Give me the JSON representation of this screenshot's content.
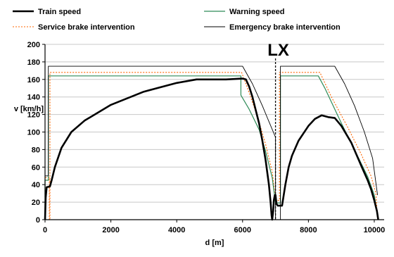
{
  "chart_data": {
    "type": "line",
    "title": "",
    "xlabel": "d [m]",
    "ylabel": "v [km/h]",
    "xlim": [
      0,
      10300
    ],
    "ylim": [
      0,
      200
    ],
    "xticks": [
      0,
      2000,
      4000,
      6000,
      8000,
      10000
    ],
    "yticks": [
      0,
      20,
      40,
      60,
      80,
      100,
      120,
      140,
      160,
      180,
      200
    ],
    "grid": "horizontal",
    "legend_position": "top",
    "annotations": [
      {
        "text": "LX",
        "x": 7000
      }
    ],
    "series": [
      {
        "name": "Train speed",
        "color": "#000000",
        "style": "solid-thick",
        "points": [
          [
            0,
            0
          ],
          [
            20,
            25
          ],
          [
            50,
            37
          ],
          [
            150,
            38
          ],
          [
            200,
            45
          ],
          [
            300,
            60
          ],
          [
            500,
            82
          ],
          [
            800,
            100
          ],
          [
            1200,
            113
          ],
          [
            2000,
            131
          ],
          [
            3000,
            146
          ],
          [
            4000,
            156
          ],
          [
            4600,
            160
          ],
          [
            5500,
            160
          ],
          [
            6000,
            161
          ],
          [
            6100,
            160
          ],
          [
            6200,
            152
          ],
          [
            6300,
            140
          ],
          [
            6400,
            125
          ],
          [
            6500,
            110
          ],
          [
            6600,
            90
          ],
          [
            6700,
            68
          ],
          [
            6800,
            40
          ],
          [
            6850,
            20
          ],
          [
            6880,
            5
          ],
          [
            6900,
            0
          ],
          [
            6930,
            10
          ],
          [
            6950,
            22
          ],
          [
            6980,
            28
          ],
          [
            7000,
            28
          ],
          [
            7030,
            18
          ],
          [
            7070,
            16
          ],
          [
            7200,
            16
          ],
          [
            7300,
            40
          ],
          [
            7400,
            60
          ],
          [
            7500,
            73
          ],
          [
            7700,
            90
          ],
          [
            8000,
            107
          ],
          [
            8200,
            115
          ],
          [
            8400,
            119
          ],
          [
            8600,
            117
          ],
          [
            8800,
            116
          ],
          [
            9000,
            107
          ],
          [
            9300,
            88
          ],
          [
            9600,
            62
          ],
          [
            9800,
            45
          ],
          [
            9900,
            35
          ],
          [
            10000,
            22
          ],
          [
            10080,
            10
          ],
          [
            10120,
            0
          ]
        ]
      },
      {
        "name": "Warning speed",
        "color": "#2e8b57",
        "style": "solid",
        "points": [
          [
            0,
            0
          ],
          [
            0,
            45
          ],
          [
            100,
            45
          ],
          [
            100,
            164
          ],
          [
            5950,
            164
          ],
          [
            5950,
            142
          ],
          [
            6200,
            126
          ],
          [
            6500,
            103
          ],
          [
            6700,
            78
          ],
          [
            6900,
            48
          ],
          [
            7000,
            19
          ],
          [
            7150,
            19
          ],
          [
            7150,
            164
          ],
          [
            8300,
            164
          ],
          [
            8500,
            150
          ],
          [
            9000,
            110
          ],
          [
            9500,
            72
          ],
          [
            9800,
            49
          ],
          [
            10000,
            28
          ],
          [
            10100,
            5
          ]
        ]
      },
      {
        "name": "Service brake intervention",
        "color": "#ff6600",
        "style": "dotted",
        "points": [
          [
            0,
            0
          ],
          [
            0,
            48
          ],
          [
            130,
            48
          ],
          [
            130,
            0
          ],
          [
            150,
            0
          ],
          [
            150,
            168
          ],
          [
            5970,
            168
          ],
          [
            6150,
            150
          ],
          [
            6450,
            118
          ],
          [
            6700,
            86
          ],
          [
            6900,
            55
          ],
          [
            7000,
            22
          ],
          [
            7120,
            22
          ],
          [
            7120,
            168
          ],
          [
            8350,
            168
          ],
          [
            8700,
            140
          ],
          [
            9200,
            105
          ],
          [
            9600,
            75
          ],
          [
            9900,
            50
          ],
          [
            10050,
            30
          ],
          [
            10100,
            0
          ]
        ]
      },
      {
        "name": "Emergency brake intervention",
        "color": "#000000",
        "style": "solid-thin",
        "points": [
          [
            0,
            0
          ],
          [
            0,
            50
          ],
          [
            100,
            50
          ],
          [
            100,
            175
          ],
          [
            6000,
            175
          ],
          [
            6300,
            155
          ],
          [
            6600,
            130
          ],
          [
            6800,
            112
          ],
          [
            7000,
            94
          ],
          [
            7000,
            0
          ],
          [
            7150,
            0
          ],
          [
            7150,
            175
          ],
          [
            8800,
            175
          ],
          [
            9100,
            155
          ],
          [
            9400,
            130
          ],
          [
            9700,
            100
          ],
          [
            9950,
            70
          ],
          [
            10100,
            28
          ]
        ]
      }
    ]
  }
}
